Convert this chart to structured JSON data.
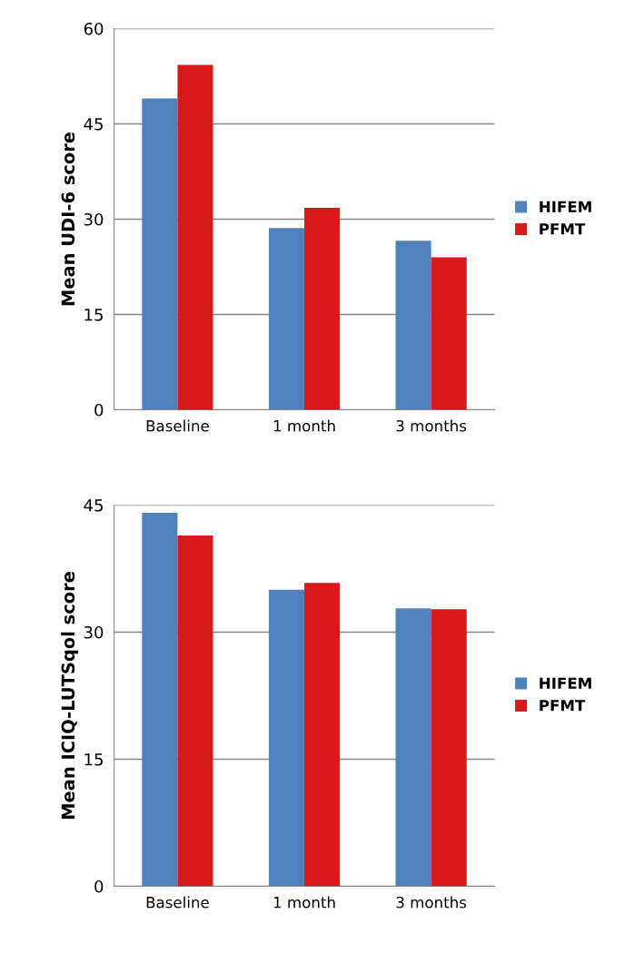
{
  "chart_data": [
    {
      "type": "bar",
      "ylabel": "Mean UDI-6 score",
      "categories": [
        "Baseline",
        "1 month",
        "3 months"
      ],
      "series": [
        {
          "name": "HIFEM",
          "color": "#4f81bd",
          "values": [
            49.0,
            28.6,
            26.6
          ]
        },
        {
          "name": "PFMT",
          "color": "#d7191c",
          "values": [
            54.3,
            31.8,
            24.0
          ]
        }
      ],
      "ylim": [
        0,
        60
      ],
      "yticks": [
        0,
        15,
        30,
        45,
        60
      ],
      "grid": "y",
      "legend": "right"
    },
    {
      "type": "bar",
      "ylabel": "Mean ICIQ-LUTSqol score",
      "categories": [
        "Baseline",
        "1 month",
        "3 months"
      ],
      "series": [
        {
          "name": "HIFEM",
          "color": "#4f81bd",
          "values": [
            44.1,
            35.0,
            32.8
          ]
        },
        {
          "name": "PFMT",
          "color": "#d7191c",
          "values": [
            41.4,
            35.8,
            32.7
          ]
        }
      ],
      "ylim": [
        0,
        45
      ],
      "yticks": [
        0,
        15,
        30,
        45
      ],
      "grid": "y",
      "legend": "right"
    }
  ]
}
